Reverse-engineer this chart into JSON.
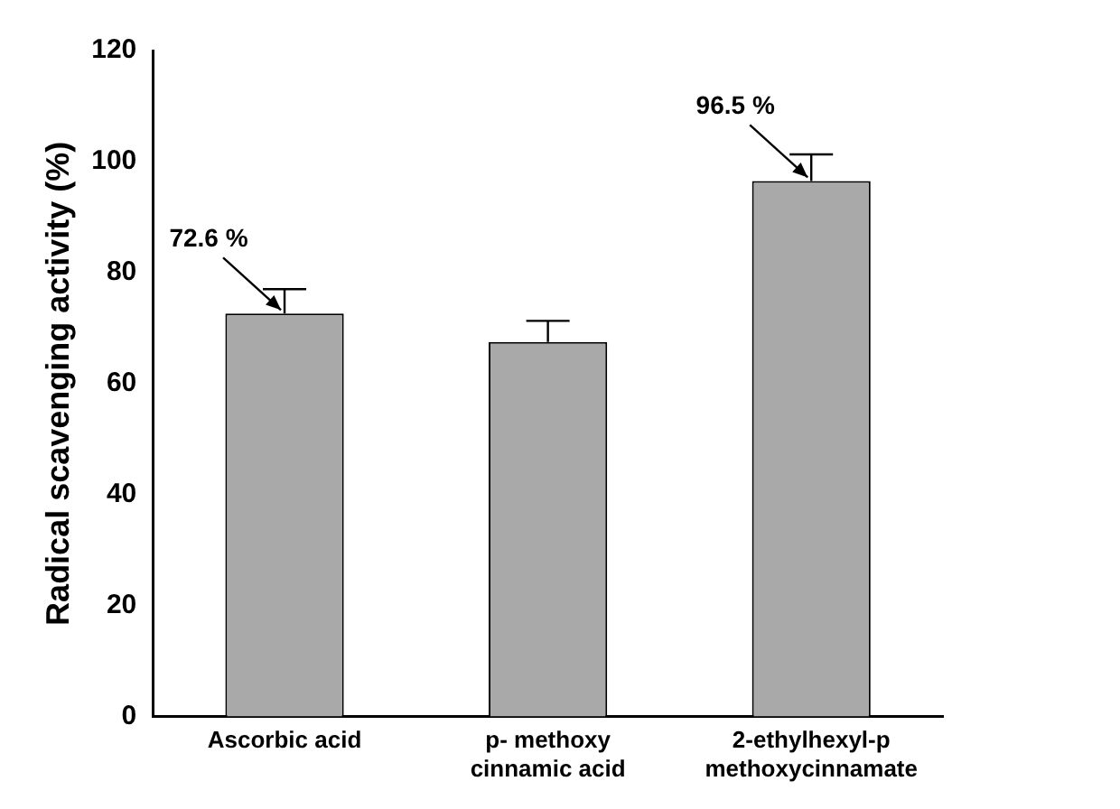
{
  "chart_data": {
    "type": "bar",
    "ylabel": "Radical scavenging activity (%)",
    "categories": [
      "Ascorbic acid",
      "p- methoxy cinnamic acid",
      "2-ethylhexyl-p methoxycinnamate"
    ],
    "values": [
      72.6,
      67.5,
      96.5
    ],
    "errors": [
      [
        72.6,
        77
      ],
      [
        67.5,
        71.3
      ],
      [
        96.5,
        101.3
      ]
    ],
    "color": "#a9a9a9",
    "ylim": [
      0,
      120
    ],
    "yticks": [
      0,
      20,
      40,
      60,
      80,
      100,
      120
    ],
    "grid": false,
    "legend": false,
    "annotations": [
      {
        "text": "72.6 %",
        "x": "Ascorbic acid",
        "y": 72.6
      },
      {
        "text": "96.5 %",
        "x": "2-ethylhexyl-p methoxycinnamate",
        "y": 96.5
      }
    ]
  }
}
